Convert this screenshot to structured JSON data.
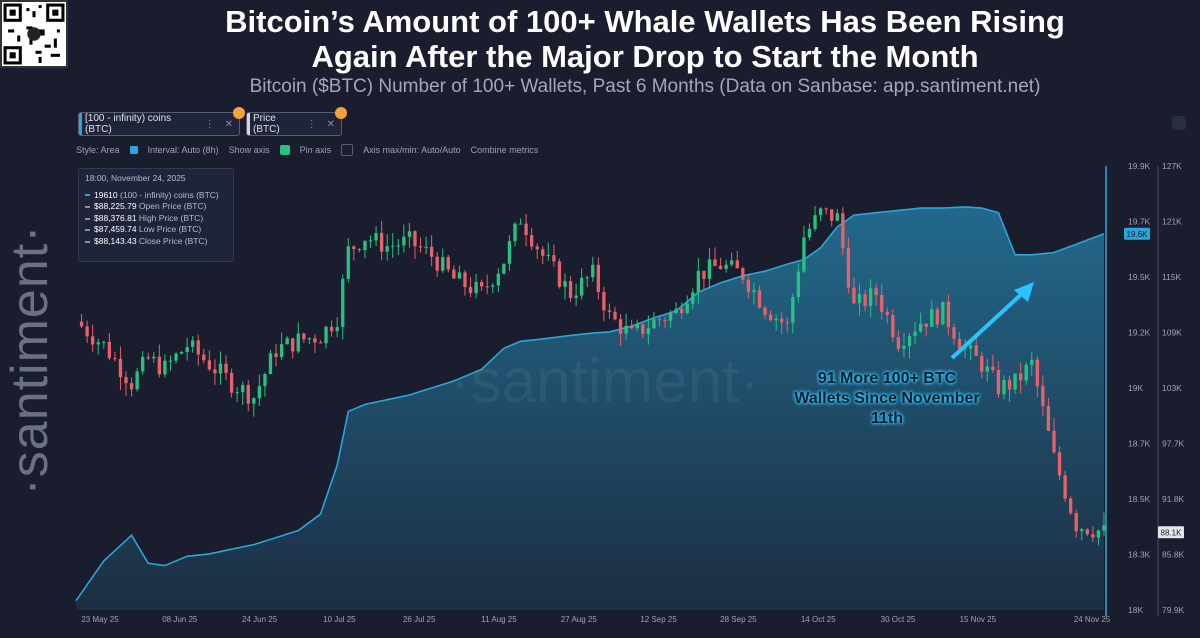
{
  "title_line1": "Bitcoin’s Amount of 100+ Whale Wallets Has Been Rising",
  "title_line2": "Again After the Major Drop to Start the Month",
  "subtitle": "Bitcoin ($BTC) Number of 100+ Wallets, Past 6 Months (Data on Sanbase: app.santiment.net)",
  "tabs": [
    {
      "label": "[100 - infinity) coins (BTC)",
      "dots": "⋮",
      "close": "✕",
      "color": "#2aa7d8"
    },
    {
      "label": "Price (BTC)",
      "dots": "⋮",
      "close": "✕",
      "color": "#d8d8d8"
    }
  ],
  "toolbar": {
    "style": "Style: Area",
    "interval": "Interval: Auto (8h)",
    "show_axis": "Show axis",
    "pin_axis": "Pin axis",
    "axis_minmax": "Axis max/min: Auto/Auto",
    "combine": "Combine metrics"
  },
  "tooltip": {
    "date": "18:00, November 24, 2025",
    "rows": [
      {
        "value": "19610",
        "label": "(100 - infinity) coins (BTC)"
      },
      {
        "value": "$88,225.79",
        "label": "Open Price (BTC)"
      },
      {
        "value": "$88,376.81",
        "label": "High Price (BTC)"
      },
      {
        "value": "$87,459.74",
        "label": "Low Price (BTC)"
      },
      {
        "value": "$88,143.43",
        "label": "Close Price (BTC)"
      }
    ]
  },
  "watermark": "·santiment·",
  "annotation": "91 More 100+ BTC Wallets Since November 11th",
  "colors": {
    "area": "#2aa7d8",
    "up": "#26c281",
    "down": "#e8606a",
    "background": "#1a1d2e"
  },
  "chart_data": {
    "type": "area",
    "x_ticks": [
      "23 May 25",
      "08 Jun 25",
      "24 Jun 25",
      "10 Jul 25",
      "26 Jul 25",
      "11 Aug 25",
      "27 Aug 25",
      "12 Sep 25",
      "28 Sep 25",
      "14 Oct 25",
      "30 Oct 25",
      "15 Nov 25",
      "24 Nov 25"
    ],
    "wallets_axis": {
      "ticks": [
        "19.9K",
        "19.7K",
        "19.5K",
        "19.2K",
        "19K",
        "18.7K",
        "18.5K",
        "18.3K",
        "18K"
      ],
      "range": [
        18000,
        19900
      ],
      "current_label": "19.6K"
    },
    "price_axis": {
      "ticks": [
        "127K",
        "121K",
        "115K",
        "109K",
        "103K",
        "97.7K",
        "91.8K",
        "85.8K",
        "79.9K"
      ],
      "range": [
        79900,
        127000
      ],
      "current_label": "88.1K"
    },
    "series": [
      {
        "name": "[100 - infinity) coins (BTC)",
        "type": "area",
        "x": [
          "2025-05-23",
          "2025-05-28",
          "2025-06-02",
          "2025-06-05",
          "2025-06-08",
          "2025-06-12",
          "2025-06-16",
          "2025-06-20",
          "2025-06-24",
          "2025-06-28",
          "2025-07-02",
          "2025-07-06",
          "2025-07-09",
          "2025-07-11",
          "2025-07-14",
          "2025-07-18",
          "2025-07-22",
          "2025-07-26",
          "2025-07-30",
          "2025-08-04",
          "2025-08-08",
          "2025-08-11",
          "2025-08-15",
          "2025-08-20",
          "2025-08-24",
          "2025-08-27",
          "2025-08-31",
          "2025-09-04",
          "2025-09-08",
          "2025-09-12",
          "2025-09-16",
          "2025-09-20",
          "2025-09-24",
          "2025-09-28",
          "2025-10-01",
          "2025-10-04",
          "2025-10-07",
          "2025-10-10",
          "2025-10-14",
          "2025-10-18",
          "2025-10-22",
          "2025-10-26",
          "2025-10-30",
          "2025-11-02",
          "2025-11-05",
          "2025-11-08",
          "2025-11-11",
          "2025-11-15",
          "2025-11-19",
          "2025-11-24"
        ],
        "values": [
          18040,
          18210,
          18320,
          18200,
          18190,
          18230,
          18240,
          18260,
          18280,
          18310,
          18340,
          18410,
          18620,
          18850,
          18880,
          18900,
          18920,
          18950,
          18980,
          19030,
          19120,
          19150,
          19160,
          19175,
          19185,
          19190,
          19215,
          19250,
          19280,
          19360,
          19400,
          19430,
          19450,
          19480,
          19500,
          19550,
          19640,
          19690,
          19700,
          19710,
          19720,
          19720,
          19725,
          19720,
          19700,
          19520,
          19520,
          19530,
          19565,
          19610
        ]
      },
      {
        "name": "Price (BTC)",
        "type": "candlestick",
        "x": [
          "2025-05-23",
          "2025-05-28",
          "2025-06-02",
          "2025-06-05",
          "2025-06-08",
          "2025-06-12",
          "2025-06-16",
          "2025-06-20",
          "2025-06-24",
          "2025-06-28",
          "2025-07-02",
          "2025-07-06",
          "2025-07-09",
          "2025-07-11",
          "2025-07-14",
          "2025-07-18",
          "2025-07-22",
          "2025-07-26",
          "2025-07-30",
          "2025-08-04",
          "2025-08-08",
          "2025-08-11",
          "2025-08-15",
          "2025-08-20",
          "2025-08-24",
          "2025-08-27",
          "2025-08-31",
          "2025-09-04",
          "2025-09-08",
          "2025-09-12",
          "2025-09-16",
          "2025-09-20",
          "2025-09-24",
          "2025-09-28",
          "2025-10-01",
          "2025-10-04",
          "2025-10-07",
          "2025-10-10",
          "2025-10-14",
          "2025-10-18",
          "2025-10-22",
          "2025-10-26",
          "2025-10-30",
          "2025-11-02",
          "2025-11-05",
          "2025-11-08",
          "2025-11-11",
          "2025-11-15",
          "2025-11-19",
          "2025-11-24"
        ],
        "values": [
          110500,
          108000,
          104000,
          106500,
          105500,
          108000,
          106000,
          104000,
          102500,
          107500,
          108500,
          109000,
          111000,
          118000,
          119500,
          118500,
          119000,
          117500,
          115000,
          113500,
          117000,
          121500,
          117500,
          113500,
          115500,
          111000,
          109000,
          110500,
          111500,
          115500,
          116500,
          115500,
          112000,
          110000,
          119500,
          122000,
          121500,
          112000,
          113500,
          108500,
          110500,
          111500,
          107500,
          106000,
          103500,
          104000,
          106000,
          96000,
          89000,
          88143
        ]
      }
    ],
    "legend": "top-left",
    "grid": false
  }
}
